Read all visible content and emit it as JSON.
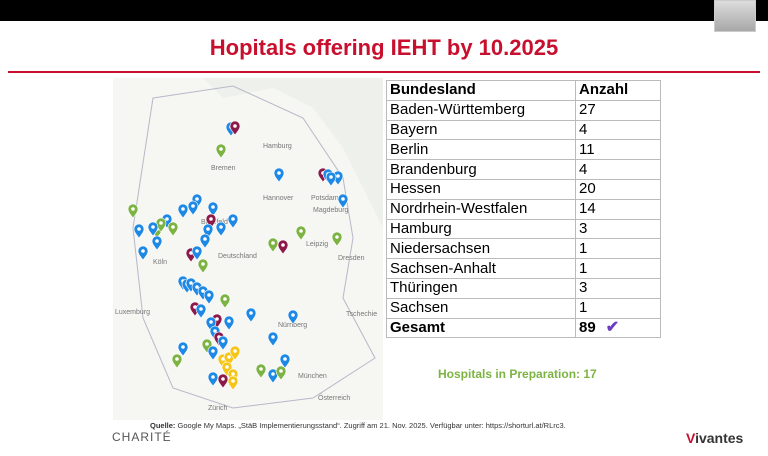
{
  "title": "Hopitals offering IEHT by 10.2025",
  "map": {
    "labels": [
      "Hamburg",
      "Bremen",
      "Hannover",
      "Bielefeld",
      "Magdeburg",
      "Potsdam",
      "Deutschland",
      "Leipzig",
      "Dresden",
      "Köln",
      "Luxemburg",
      "Nürnberg",
      "Tschechie",
      "München",
      "Zürich",
      "Österreich"
    ]
  },
  "table": {
    "header": [
      "Bundesland",
      "Anzahl"
    ],
    "rows": [
      [
        "Baden-Württemberg",
        "27"
      ],
      [
        "Bayern",
        "4"
      ],
      [
        "Berlin",
        "11"
      ],
      [
        "Brandenburg",
        "4"
      ],
      [
        "Hessen",
        "20"
      ],
      [
        "Nordrhein-Westfalen",
        "14"
      ],
      [
        "Hamburg",
        "3"
      ],
      [
        "Niedersachsen",
        "1"
      ],
      [
        "Sachsen-Anhalt",
        "1"
      ],
      [
        "Thüringen",
        "3"
      ],
      [
        "Sachsen",
        "1"
      ]
    ],
    "total": [
      "Gesamt",
      "89"
    ]
  },
  "preparation": "Hospitals in Preparation: 17",
  "source": {
    "label": "Quelle:",
    "text": "Google My Maps. „StäB Implementierungsstand“. Zugriff am 21. Nov. 2025. Verfügbar unter: https://shorturl.at/RLrc3."
  },
  "logos": {
    "left": "CHARITÉ",
    "right_v": "V",
    "right": "ivantes"
  }
}
